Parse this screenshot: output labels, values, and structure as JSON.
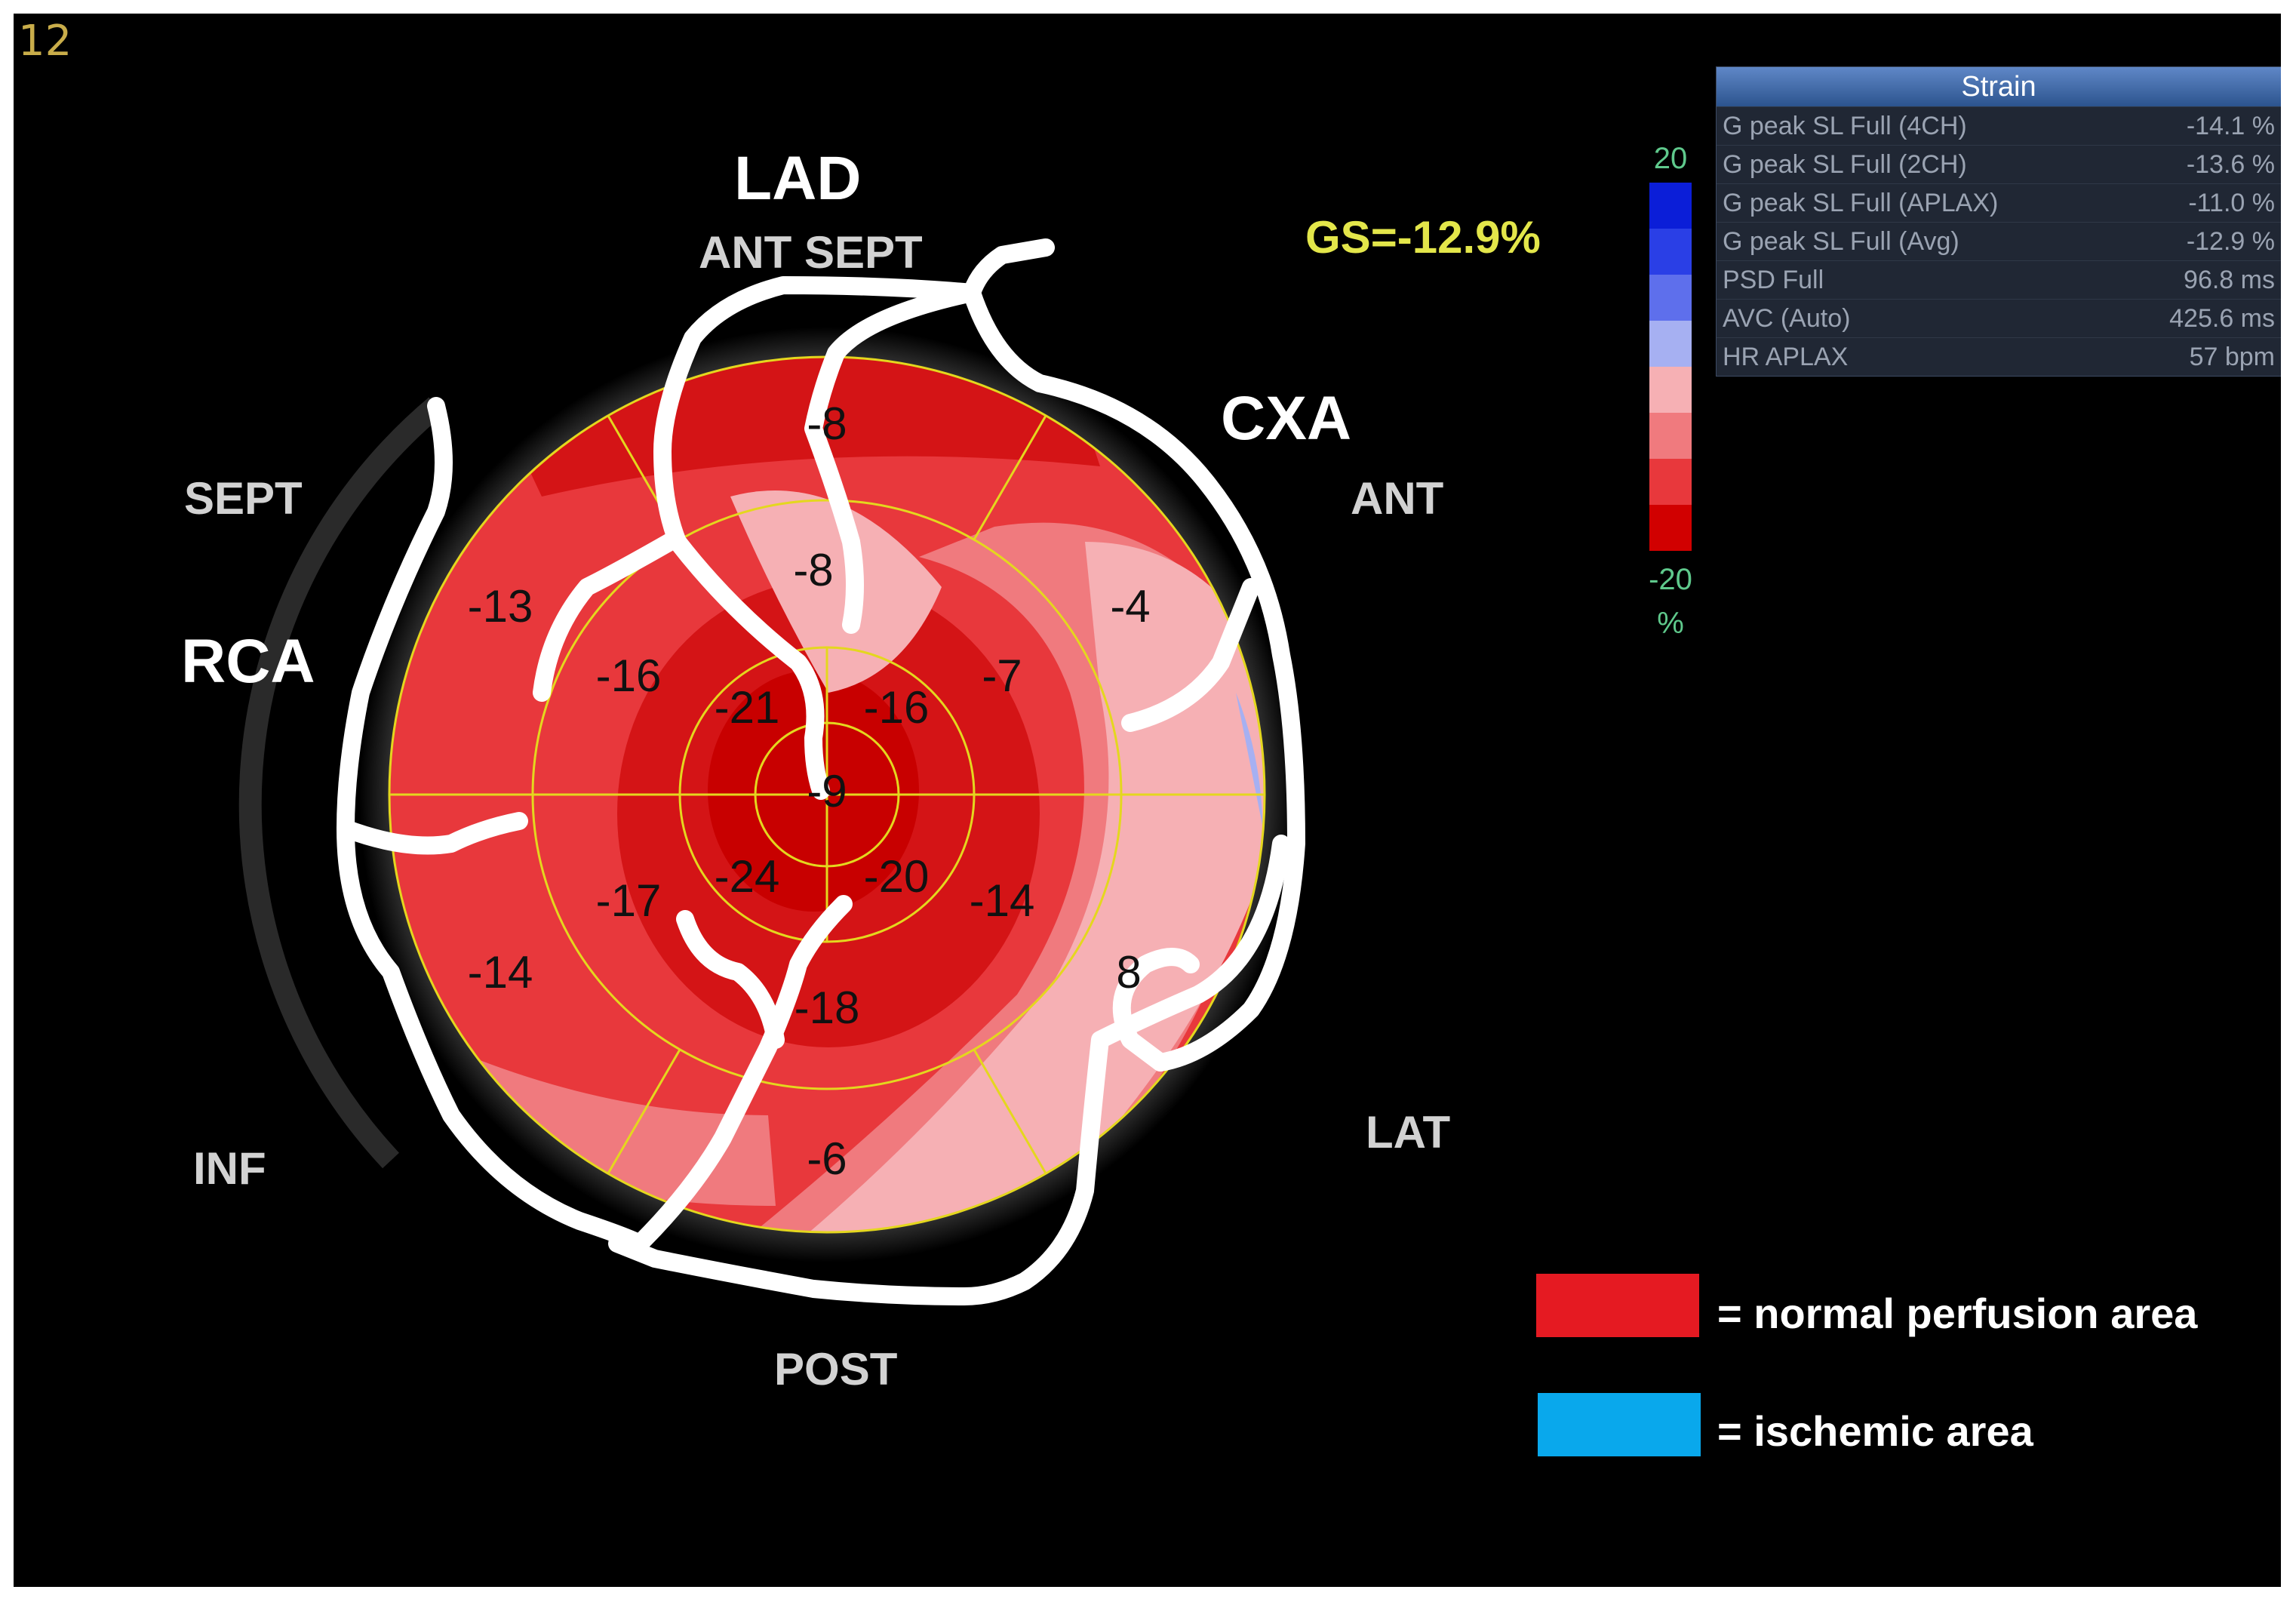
{
  "frame_number": "12",
  "arteries": {
    "lad": "LAD",
    "cxa": "CXA",
    "rca": "RCA"
  },
  "walls": {
    "ant_sept": "ANT SEPT",
    "ant": "ANT",
    "sept": "SEPT",
    "lat": "LAT",
    "inf": "INF",
    "post": "POST"
  },
  "global_strain": "GS=-12.9%",
  "color_scale": {
    "max_label": "20",
    "min_label": "-20",
    "unit": "%",
    "colors": [
      "#0b1ed8",
      "#2a3fe6",
      "#5e6fec",
      "#a6b0f2",
      "#f6b0b4",
      "#f07a7e",
      "#e8383c",
      "#d10000"
    ]
  },
  "strain_table": {
    "title": "Strain",
    "rows": [
      {
        "label": "G peak SL Full (4CH)",
        "value": "-14.1 %"
      },
      {
        "label": "G peak SL Full (2CH)",
        "value": "-13.6 %"
      },
      {
        "label": "G peak SL Full (APLAX)",
        "value": "-11.0 %"
      },
      {
        "label": "G peak SL Full (Avg)",
        "value": "-12.9 %"
      },
      {
        "label": "PSD Full",
        "value": "96.8 ms"
      },
      {
        "label": "AVC (Auto)",
        "value": "425.6 ms"
      },
      {
        "label": "HR APLAX",
        "value": "57 bpm"
      }
    ]
  },
  "segments": {
    "basal": [
      "-8",
      "-4",
      "8",
      "-6",
      "-14",
      "-13"
    ],
    "mid": [
      "-8",
      "-7",
      "-14",
      "-18",
      "-17",
      "-16"
    ],
    "apical": [
      "-16",
      "-20",
      "-24",
      "-21"
    ],
    "apex": "-9"
  },
  "legend": {
    "normal": "= normal perfusion area",
    "normal_color": "#e51a22",
    "ischemic": "= ischemic area",
    "ischemic_color": "#09a8ec"
  }
}
